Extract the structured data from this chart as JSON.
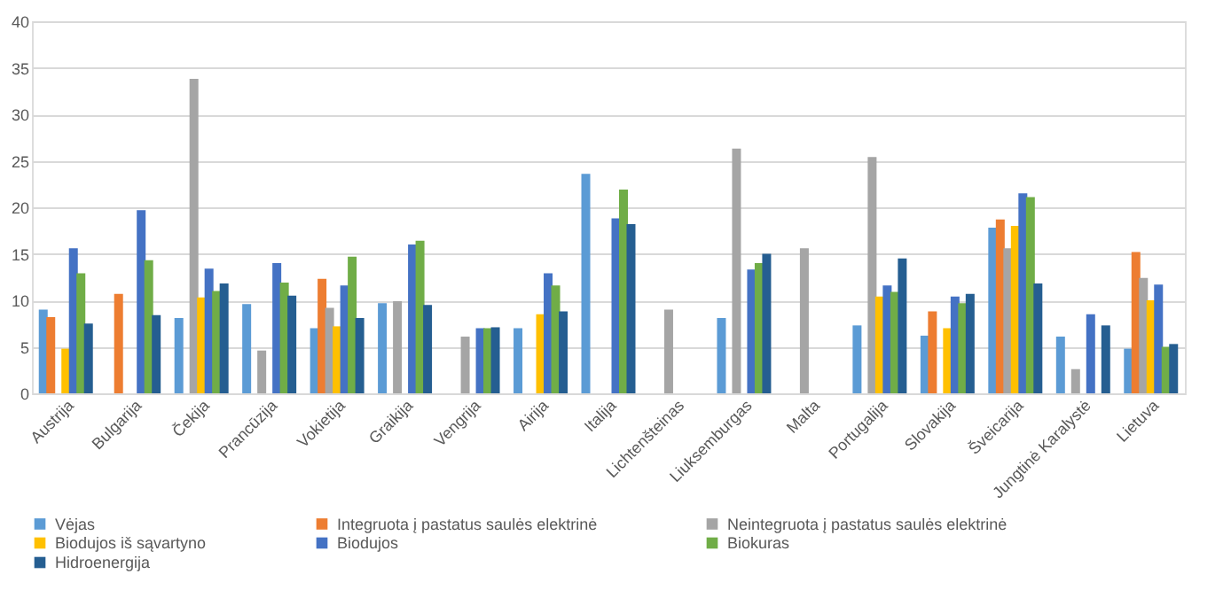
{
  "chart_data": {
    "type": "bar",
    "categories": [
      "Austrija",
      "Bulgarija",
      "Čekija",
      "Prancūzija",
      "Vokietija",
      "Graikija",
      "Vengrija",
      "Airija",
      "Italija",
      "Lichtenšteinas",
      "Liuksemburgas",
      "Malta",
      "Portugalija",
      "Slovakija",
      "Šveicarija",
      "Jungtinė Karalystė",
      "Lietuva"
    ],
    "series": [
      {
        "name": "Vėjas",
        "color": "#5b9bd5",
        "values": [
          9.0,
          null,
          8.1,
          9.6,
          7.0,
          9.7,
          null,
          7.0,
          23.6,
          null,
          8.1,
          null,
          7.3,
          6.2,
          17.8,
          6.1,
          4.8
        ]
      },
      {
        "name": "Integruota į pastatus saulės elektrinė",
        "color": "#ed7d31",
        "values": [
          8.2,
          10.7,
          null,
          null,
          12.3,
          null,
          null,
          null,
          null,
          null,
          null,
          null,
          null,
          8.8,
          18.7,
          null,
          15.2
        ]
      },
      {
        "name": "Neintegruota į pastatus saulės elektrinė",
        "color": "#a5a5a5",
        "values": [
          null,
          null,
          33.8,
          4.6,
          9.2,
          9.9,
          6.1,
          null,
          null,
          9.0,
          26.3,
          15.6,
          25.4,
          null,
          15.6,
          2.6,
          12.4
        ]
      },
      {
        "name": "Biodujos iš sąvartyno",
        "color": "#ffc000",
        "values": [
          4.8,
          null,
          10.3,
          null,
          7.2,
          null,
          null,
          8.5,
          null,
          null,
          null,
          null,
          10.4,
          7.0,
          18.0,
          null,
          10.0
        ]
      },
      {
        "name": "Biodujos",
        "color": "#4472c4",
        "values": [
          15.6,
          19.7,
          13.4,
          14.0,
          11.6,
          16.0,
          7.0,
          12.9,
          18.8,
          null,
          13.3,
          null,
          11.6,
          10.4,
          21.5,
          8.5,
          11.7
        ]
      },
      {
        "name": "Biokuras",
        "color": "#70ad47",
        "values": [
          12.9,
          14.3,
          11.0,
          11.9,
          14.7,
          16.4,
          7.0,
          11.6,
          21.9,
          null,
          14.0,
          null,
          10.9,
          9.7,
          21.1,
          null,
          5.0
        ]
      },
      {
        "name": "Hidroenergija",
        "color": "#255e91",
        "values": [
          7.5,
          8.4,
          11.8,
          10.5,
          8.1,
          9.5,
          7.1,
          8.8,
          18.2,
          null,
          15.0,
          null,
          14.5,
          10.7,
          11.8,
          7.3,
          5.3
        ]
      }
    ],
    "ylim": [
      0,
      40
    ],
    "yticks": [
      0,
      5,
      10,
      15,
      20,
      25,
      30,
      35,
      40
    ],
    "grid": "y",
    "legend": "bottom"
  }
}
